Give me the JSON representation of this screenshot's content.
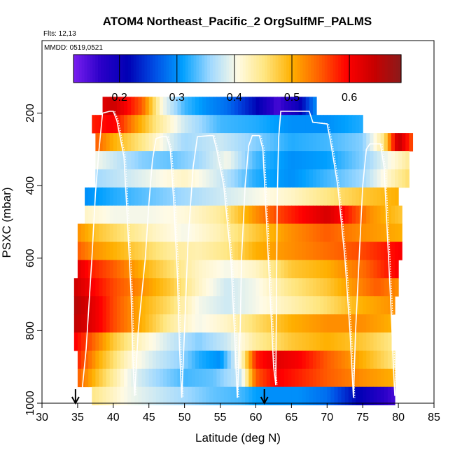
{
  "chart_data": {
    "type": "heatmap",
    "title": "ATOM4 Northeast_Pacific_2 OrgSulfMF_PALMS",
    "flights_label": "Flts: 12,13",
    "date_label": "MMDD: 0519,0521",
    "xlabel": "Latitude (deg N)",
    "ylabel": "PSXC (mbar)",
    "xlim": [
      30,
      85
    ],
    "ylim": [
      1000,
      0
    ],
    "x_ticks": [
      30,
      35,
      40,
      45,
      50,
      55,
      60,
      65,
      70,
      75,
      80,
      85
    ],
    "x_tick_labels": [
      "30",
      "35",
      "40",
      "45",
      "50",
      "55",
      "60",
      "65",
      "70",
      "75",
      "80",
      "85"
    ],
    "y_ticks": [
      200,
      400,
      600,
      800,
      1000
    ],
    "y_tick_labels": [
      "200",
      "400",
      "600",
      "800",
      "1000"
    ],
    "colorbar": {
      "range": [
        0.12,
        0.69
      ],
      "ticks": [
        0.2,
        0.3,
        0.4,
        0.5,
        0.6
      ],
      "tick_labels": [
        "0.2",
        "0.3",
        "0.4",
        "0.5",
        "0.6"
      ],
      "colors": [
        "#7a1ef0",
        "#2a00c8",
        "#0000b4",
        "#0050e6",
        "#00a0ff",
        "#9ed8ff",
        "#fffbe6",
        "#ffe680",
        "#ffb000",
        "#ff6000",
        "#ff0000",
        "#c80000",
        "#8b1a1a"
      ]
    },
    "arrow_markers_lat": [
      34.7,
      61.2
    ],
    "pressure_levels": [
      180,
      230,
      280,
      330,
      380,
      430,
      480,
      530,
      580,
      630,
      680,
      730,
      780,
      830,
      880,
      930,
      980
    ],
    "row_extents": [
      [
        38.5,
        68.5
      ],
      [
        37.0,
        75.0
      ],
      [
        37.5,
        82.0
      ],
      [
        37.5,
        81.5
      ],
      [
        37.5,
        81.5
      ],
      [
        36.0,
        80.0
      ],
      [
        36.0,
        80.5
      ],
      [
        35.0,
        80.5
      ],
      [
        35.0,
        80.5
      ],
      [
        35.0,
        80.0
      ],
      [
        34.5,
        80.0
      ],
      [
        34.5,
        79.5
      ],
      [
        34.5,
        79.0
      ],
      [
        34.5,
        79.0
      ],
      [
        35.0,
        79.5
      ],
      [
        35.0,
        79.5
      ],
      [
        37.0,
        79.5
      ]
    ],
    "field_anchors": [
      {
        "p": 180,
        "lat": [
          38.5,
          40,
          44,
          47,
          50,
          53,
          56,
          60,
          63,
          66,
          68.5
        ],
        "v": [
          0.62,
          0.64,
          0.55,
          0.4,
          0.33,
          0.3,
          0.28,
          0.22,
          0.15,
          0.2,
          0.3
        ]
      },
      {
        "p": 230,
        "lat": [
          37,
          40,
          43,
          46,
          50,
          55,
          60,
          65,
          70,
          75
        ],
        "v": [
          0.58,
          0.6,
          0.52,
          0.45,
          0.38,
          0.33,
          0.32,
          0.3,
          0.3,
          0.32
        ]
      },
      {
        "p": 280,
        "lat": [
          37.5,
          40,
          44,
          47,
          50,
          55,
          60,
          65,
          70,
          75,
          78,
          80,
          82
        ],
        "v": [
          0.55,
          0.5,
          0.45,
          0.4,
          0.36,
          0.38,
          0.35,
          0.32,
          0.33,
          0.35,
          0.45,
          0.65,
          0.55
        ]
      },
      {
        "p": 330,
        "lat": [
          37.5,
          40,
          44,
          48,
          52,
          56,
          60,
          65,
          70,
          75,
          80,
          82
        ],
        "v": [
          0.4,
          0.38,
          0.35,
          0.34,
          0.36,
          0.4,
          0.33,
          0.3,
          0.31,
          0.35,
          0.42,
          0.45
        ]
      },
      {
        "p": 380,
        "lat": [
          37.5,
          42,
          46,
          50,
          55,
          60,
          65,
          70,
          75,
          80,
          81.5
        ],
        "v": [
          0.36,
          0.38,
          0.4,
          0.42,
          0.38,
          0.32,
          0.3,
          0.33,
          0.36,
          0.44,
          0.46
        ]
      },
      {
        "p": 430,
        "lat": [
          36,
          40,
          45,
          50,
          55,
          60,
          65,
          70,
          75,
          80
        ],
        "v": [
          0.3,
          0.32,
          0.34,
          0.36,
          0.38,
          0.4,
          0.42,
          0.45,
          0.48,
          0.5
        ]
      },
      {
        "p": 480,
        "lat": [
          36,
          40,
          45,
          50,
          55,
          60,
          63,
          67,
          70,
          73,
          76,
          80.5
        ],
        "v": [
          0.42,
          0.4,
          0.4,
          0.41,
          0.44,
          0.52,
          0.56,
          0.6,
          0.63,
          0.58,
          0.52,
          0.48
        ]
      },
      {
        "p": 530,
        "lat": [
          35,
          38,
          42,
          46,
          50,
          55,
          60,
          65,
          70,
          75,
          80.5
        ],
        "v": [
          0.52,
          0.48,
          0.45,
          0.42,
          0.4,
          0.43,
          0.48,
          0.52,
          0.55,
          0.52,
          0.5
        ]
      },
      {
        "p": 580,
        "lat": [
          35,
          37,
          40,
          44,
          48,
          52,
          56,
          60,
          65,
          70,
          75,
          80.5
        ],
        "v": [
          0.55,
          0.52,
          0.5,
          0.47,
          0.44,
          0.43,
          0.45,
          0.5,
          0.52,
          0.54,
          0.56,
          0.6
        ]
      },
      {
        "p": 630,
        "lat": [
          35,
          37,
          40,
          44,
          48,
          52,
          56,
          60,
          65,
          70,
          75,
          80
        ],
        "v": [
          0.62,
          0.58,
          0.55,
          0.5,
          0.46,
          0.42,
          0.4,
          0.42,
          0.48,
          0.5,
          0.54,
          0.6
        ]
      },
      {
        "p": 680,
        "lat": [
          34.5,
          37,
          40,
          44,
          48,
          52,
          56,
          60,
          65,
          70,
          74,
          77,
          80
        ],
        "v": [
          0.64,
          0.6,
          0.56,
          0.52,
          0.48,
          0.42,
          0.38,
          0.4,
          0.45,
          0.48,
          0.52,
          0.55,
          0.52
        ]
      },
      {
        "p": 730,
        "lat": [
          34.5,
          37,
          40,
          44,
          48,
          52,
          56,
          60,
          65,
          70,
          75,
          79.5
        ],
        "v": [
          0.66,
          0.62,
          0.56,
          0.5,
          0.46,
          0.4,
          0.38,
          0.4,
          0.43,
          0.46,
          0.5,
          0.52
        ]
      },
      {
        "p": 780,
        "lat": [
          34.5,
          37,
          40,
          44,
          48,
          52,
          56,
          60,
          65,
          70,
          75,
          79
        ],
        "v": [
          0.65,
          0.62,
          0.56,
          0.5,
          0.44,
          0.4,
          0.42,
          0.46,
          0.5,
          0.52,
          0.52,
          0.5
        ]
      },
      {
        "p": 830,
        "lat": [
          34.5,
          37,
          40,
          44,
          48,
          52,
          56,
          60,
          65,
          70,
          75,
          79
        ],
        "v": [
          0.6,
          0.55,
          0.48,
          0.42,
          0.38,
          0.35,
          0.38,
          0.44,
          0.48,
          0.5,
          0.48,
          0.45
        ]
      },
      {
        "p": 880,
        "lat": [
          35,
          38,
          42,
          46,
          50,
          52,
          55,
          58,
          60,
          63,
          66,
          70,
          75,
          79.5
        ],
        "v": [
          0.58,
          0.5,
          0.42,
          0.38,
          0.35,
          0.32,
          0.3,
          0.42,
          0.58,
          0.62,
          0.6,
          0.55,
          0.5,
          0.45
        ]
      },
      {
        "p": 930,
        "lat": [
          35,
          38,
          42,
          46,
          50,
          54,
          58,
          60,
          63,
          66,
          70,
          75,
          79.5
        ],
        "v": [
          0.55,
          0.48,
          0.4,
          0.36,
          0.33,
          0.34,
          0.38,
          0.55,
          0.6,
          0.58,
          0.55,
          0.52,
          0.5
        ]
      },
      {
        "p": 980,
        "lat": [
          37,
          40,
          42,
          46,
          50,
          54,
          58,
          60,
          62,
          66,
          70,
          74,
          77,
          79.5
        ],
        "v": [
          0.45,
          0.42,
          0.4,
          0.38,
          0.36,
          0.34,
          0.33,
          0.31,
          0.3,
          0.3,
          0.28,
          0.22,
          0.18,
          0.15
        ]
      }
    ],
    "flight_track_pairs": [
      [
        [
          35.5,
          990
        ],
        [
          36.2,
          850
        ],
        [
          37.0,
          600
        ],
        [
          37.5,
          420
        ],
        [
          38.0,
          300
        ],
        [
          38.5,
          200
        ],
        [
          39.5,
          195
        ],
        [
          40.0,
          195
        ],
        [
          40.5,
          220
        ],
        [
          41.5,
          320
        ],
        [
          42.0,
          500
        ],
        [
          42.5,
          700
        ],
        [
          42.8,
          900
        ],
        [
          43.0,
          980
        ]
      ],
      [
        [
          43.0,
          980
        ],
        [
          43.5,
          800
        ],
        [
          44.5,
          600
        ],
        [
          45.0,
          450
        ],
        [
          45.5,
          330
        ],
        [
          46.0,
          270
        ],
        [
          46.8,
          265
        ],
        [
          47.5,
          265
        ],
        [
          48.0,
          300
        ],
        [
          48.5,
          450
        ],
        [
          49.0,
          650
        ],
        [
          49.3,
          850
        ],
        [
          49.6,
          985
        ]
      ],
      [
        [
          49.6,
          985
        ],
        [
          50.0,
          800
        ],
        [
          50.5,
          550
        ],
        [
          51.2,
          350
        ],
        [
          51.8,
          265
        ],
        [
          53.5,
          262
        ],
        [
          54.0,
          262
        ],
        [
          54.5,
          300
        ],
        [
          55.5,
          400
        ],
        [
          56.5,
          600
        ],
        [
          57.0,
          800
        ],
        [
          57.4,
          985
        ]
      ],
      [
        [
          57.4,
          985
        ],
        [
          57.8,
          800
        ],
        [
          58.0,
          600
        ],
        [
          58.5,
          400
        ],
        [
          59.0,
          290
        ],
        [
          59.5,
          262
        ],
        [
          60.5,
          262
        ],
        [
          61.0,
          300
        ],
        [
          61.5,
          500
        ],
        [
          62.0,
          700
        ],
        [
          62.5,
          900
        ],
        [
          62.8,
          950
        ]
      ],
      [
        [
          62.8,
          950
        ],
        [
          62.9,
          700
        ],
        [
          63.0,
          450
        ],
        [
          63.2,
          270
        ],
        [
          63.5,
          195
        ],
        [
          67.5,
          195
        ],
        [
          68.0,
          225
        ],
        [
          70.0,
          230
        ],
        [
          70.5,
          280
        ],
        [
          71.5,
          400
        ],
        [
          72.5,
          600
        ],
        [
          73.2,
          800
        ],
        [
          73.7,
          985
        ]
      ],
      [
        [
          73.7,
          985
        ],
        [
          74.0,
          800
        ],
        [
          74.5,
          600
        ],
        [
          75.0,
          400
        ],
        [
          75.5,
          300
        ],
        [
          76.0,
          285
        ],
        [
          77.5,
          285
        ],
        [
          78.0,
          350
        ],
        [
          78.5,
          550
        ],
        [
          79.0,
          750
        ],
        [
          79.3,
          900
        ],
        [
          79.5,
          980
        ]
      ]
    ]
  }
}
